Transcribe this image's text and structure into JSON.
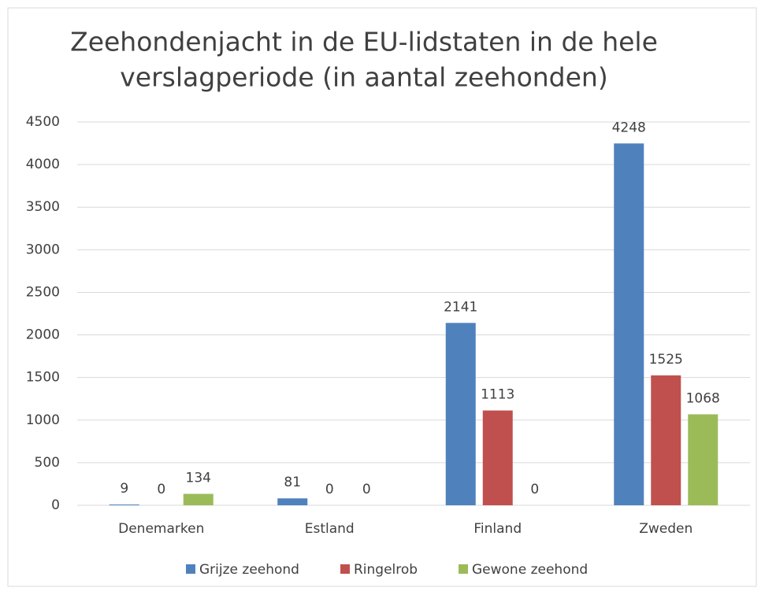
{
  "chart_data": {
    "type": "bar",
    "title": [
      "Zeehondenjacht in de EU-lidstaten in de hele",
      "verslagperiode (in aantal zeehonden)"
    ],
    "categories": [
      "Denemarken",
      "Estland",
      "Finland",
      "Zweden"
    ],
    "series": [
      {
        "name": "Grijze zeehond",
        "color": "#4f81bd",
        "values": [
          9,
          81,
          2141,
          4248
        ]
      },
      {
        "name": "Ringelrob",
        "color": "#c0504d",
        "values": [
          0,
          0,
          1113,
          1525
        ]
      },
      {
        "name": "Gewone zeehond",
        "color": "#9bbb59",
        "values": [
          134,
          0,
          0,
          1068
        ]
      }
    ],
    "ylim": [
      0,
      4500
    ],
    "yticks": [
      0,
      500,
      1000,
      1500,
      2000,
      2500,
      3000,
      3500,
      4000,
      4500
    ],
    "grid": true,
    "legend": "bottom"
  }
}
